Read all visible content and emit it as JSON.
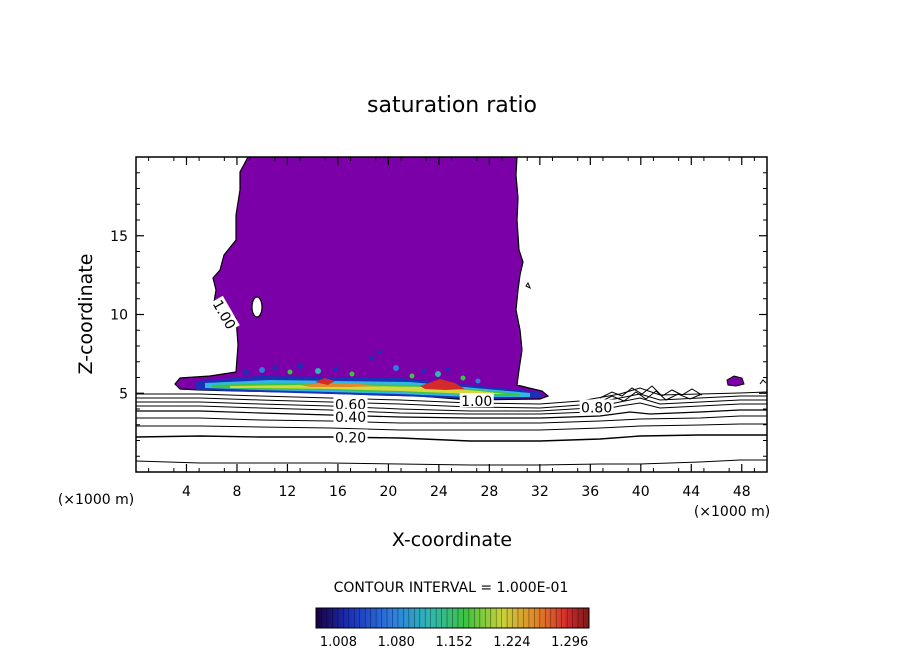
{
  "colors": {
    "cloud_fill": "#7b00a8",
    "line": "#000000",
    "background": "#ffffff"
  },
  "chart_data": {
    "type": "contour",
    "title": "saturation ratio",
    "xlabel": "X-coordinate",
    "ylabel": "Z-coordinate",
    "x_unit": "(×1000 m)",
    "y_unit": "(×1000 m)",
    "xlim": [
      0,
      50
    ],
    "ylim": [
      0,
      20
    ],
    "x_ticks": [
      4,
      8,
      12,
      16,
      20,
      24,
      28,
      32,
      36,
      40,
      44,
      48
    ],
    "y_ticks": [
      5,
      10,
      15
    ],
    "contour_interval_text": "CONTOUR INTERVAL = 1.000E-01",
    "contour_labels": [
      {
        "text": "1.00",
        "x": 7.0,
        "z": 10.0,
        "angle": 60
      },
      {
        "text": "0.60",
        "x": 17.0,
        "z": 4.3,
        "angle": 0
      },
      {
        "text": "0.40",
        "x": 17.0,
        "z": 3.5,
        "angle": 0
      },
      {
        "text": "0.20",
        "x": 17.0,
        "z": 2.2,
        "angle": 0
      },
      {
        "text": "1.00",
        "x": 27.0,
        "z": 4.5,
        "angle": 0
      },
      {
        "text": "0.80",
        "x": 36.5,
        "z": 4.1,
        "angle": 0
      }
    ],
    "colorbar": {
      "tick_labels": [
        "1.008",
        "1.080",
        "1.152",
        "1.224",
        "1.296"
      ],
      "range": [
        0.98,
        1.32
      ]
    },
    "grid": false
  }
}
